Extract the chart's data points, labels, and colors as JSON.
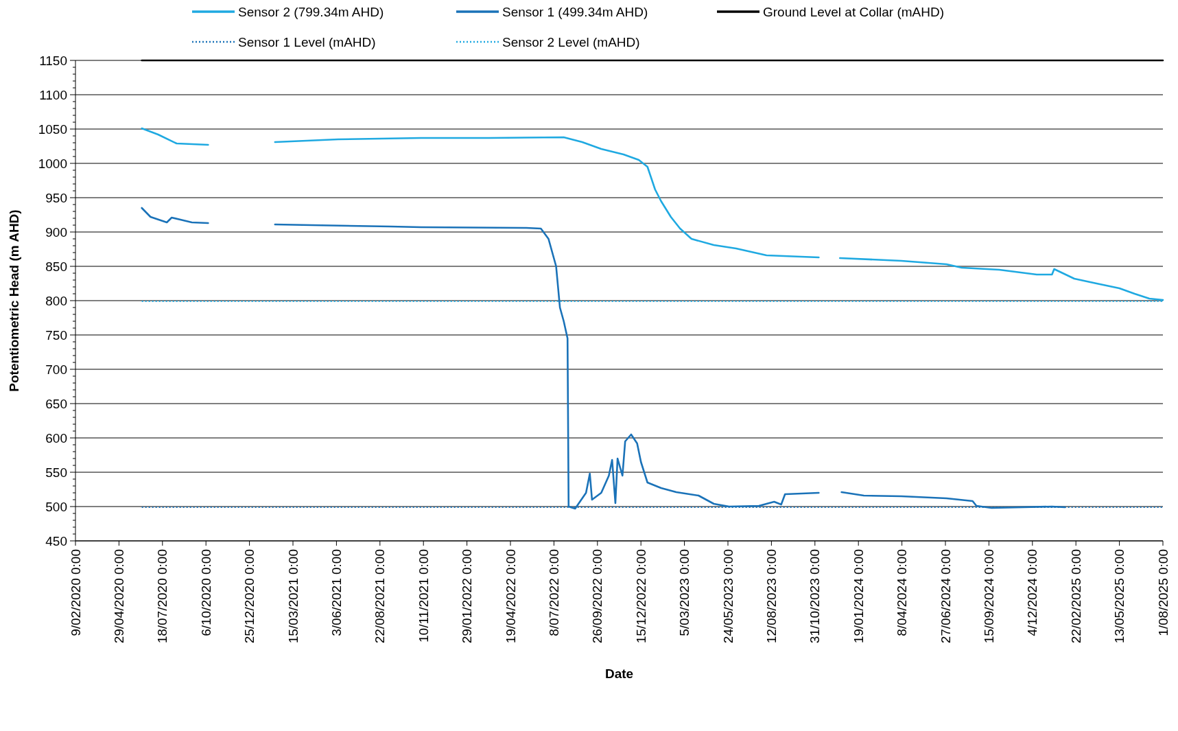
{
  "chart_data": {
    "type": "line",
    "xlabel": "Date",
    "ylabel": "Potentiometric Head (m AHD)",
    "legend": "top",
    "grid": "y",
    "xlim": [
      "2020-02-09",
      "2025-08-01"
    ],
    "ylim": [
      450,
      1150
    ],
    "xticks": [
      {
        "value": "2020-02-09",
        "label": "9/02/2020 0:00"
      },
      {
        "value": "2020-04-29",
        "label": "29/04/2020 0:00"
      },
      {
        "value": "2020-07-18",
        "label": "18/07/2020 0:00"
      },
      {
        "value": "2020-10-06",
        "label": "6/10/2020 0:00"
      },
      {
        "value": "2020-12-25",
        "label": "25/12/2020 0:00"
      },
      {
        "value": "2021-03-15",
        "label": "15/03/2021 0:00"
      },
      {
        "value": "2021-06-03",
        "label": "3/06/2021 0:00"
      },
      {
        "value": "2021-08-22",
        "label": "22/08/2021 0:00"
      },
      {
        "value": "2021-11-10",
        "label": "10/11/2021 0:00"
      },
      {
        "value": "2022-01-29",
        "label": "29/01/2022 0:00"
      },
      {
        "value": "2022-04-19",
        "label": "19/04/2022 0:00"
      },
      {
        "value": "2022-07-08",
        "label": "8/07/2022 0:00"
      },
      {
        "value": "2022-09-26",
        "label": "26/09/2022 0:00"
      },
      {
        "value": "2022-12-15",
        "label": "15/12/2022 0:00"
      },
      {
        "value": "2023-03-05",
        "label": "5/03/2023 0:00"
      },
      {
        "value": "2023-05-24",
        "label": "24/05/2023 0:00"
      },
      {
        "value": "2023-08-12",
        "label": "12/08/2023 0:00"
      },
      {
        "value": "2023-10-31",
        "label": "31/10/2023 0:00"
      },
      {
        "value": "2024-01-19",
        "label": "19/01/2024 0:00"
      },
      {
        "value": "2024-04-08",
        "label": "8/04/2024 0:00"
      },
      {
        "value": "2024-06-27",
        "label": "27/06/2024 0:00"
      },
      {
        "value": "2024-09-15",
        "label": "15/09/2024 0:00"
      },
      {
        "value": "2024-12-04",
        "label": "4/12/2024 0:00"
      },
      {
        "value": "2025-02-22",
        "label": "22/02/2025 0:00"
      },
      {
        "value": "2025-05-13",
        "label": "13/05/2025 0:00"
      },
      {
        "value": "2025-08-01",
        "label": "1/08/2025 0:00"
      }
    ],
    "yticks": [
      450,
      {
        "value": 460,
        "label": null
      },
      {
        "value": 470,
        "label": null
      },
      {
        "value": 480,
        "label": null
      },
      {
        "value": 490,
        "label": null
      },
      500,
      {
        "value": 510,
        "label": null
      },
      {
        "value": 520,
        "label": null
      },
      {
        "value": 530,
        "label": null
      },
      {
        "value": 540,
        "label": null
      },
      550,
      {
        "value": 560,
        "label": null
      },
      {
        "value": 570,
        "label": null
      },
      {
        "value": 580,
        "label": null
      },
      {
        "value": 590,
        "label": null
      },
      600,
      {
        "value": 610,
        "label": null
      },
      {
        "value": 620,
        "label": null
      },
      {
        "value": 630,
        "label": null
      },
      {
        "value": 640,
        "label": null
      },
      650,
      {
        "value": 660,
        "label": null
      },
      {
        "value": 670,
        "label": null
      },
      {
        "value": 680,
        "label": null
      },
      {
        "value": 690,
        "label": null
      },
      700,
      {
        "value": 710,
        "label": null
      },
      {
        "value": 720,
        "label": null
      },
      {
        "value": 730,
        "label": null
      },
      {
        "value": 740,
        "label": null
      },
      750,
      {
        "value": 760,
        "label": null
      },
      {
        "value": 770,
        "label": null
      },
      {
        "value": 780,
        "label": null
      },
      {
        "value": 790,
        "label": null
      },
      800,
      {
        "value": 810,
        "label": null
      },
      {
        "value": 820,
        "label": null
      },
      {
        "value": 830,
        "label": null
      },
      {
        "value": 840,
        "label": null
      },
      850,
      {
        "value": 860,
        "label": null
      },
      {
        "value": 870,
        "label": null
      },
      {
        "value": 880,
        "label": null
      },
      {
        "value": 890,
        "label": null
      },
      900,
      {
        "value": 910,
        "label": null
      },
      {
        "value": 920,
        "label": null
      },
      {
        "value": 930,
        "label": null
      },
      {
        "value": 940,
        "label": null
      },
      950,
      {
        "value": 960,
        "label": null
      },
      {
        "value": 970,
        "label": null
      },
      {
        "value": 980,
        "label": null
      },
      {
        "value": 990,
        "label": null
      },
      1000,
      {
        "value": 1010,
        "label": null
      },
      {
        "value": 1020,
        "label": null
      },
      {
        "value": 1030,
        "label": null
      },
      {
        "value": 1040,
        "label": null
      },
      1050,
      {
        "value": 1060,
        "label": null
      },
      {
        "value": 1070,
        "label": null
      },
      {
        "value": 1080,
        "label": null
      },
      {
        "value": 1090,
        "label": null
      },
      1100,
      {
        "value": 1110,
        "label": null
      },
      {
        "value": 1120,
        "label": null
      },
      {
        "value": 1130,
        "label": null
      },
      {
        "value": 1140,
        "label": null
      },
      1150
    ],
    "series": [
      {
        "name": "Sensor 2 (799.34m AHD)",
        "color": "#1fa9e1",
        "line_style": "solid",
        "x": [
          "2020-06-10",
          "2020-07-10",
          "2020-08-13",
          "2020-10-10",
          "2020-12-01",
          "2021-02-10",
          "2021-06-06",
          "2021-11-05",
          "2022-03-10",
          "2022-07-26",
          "2022-08-29",
          "2022-10-03",
          "2022-11-13",
          "2022-12-11",
          "2022-12-27",
          "2023-01-10",
          "2023-01-21",
          "2023-02-08",
          "2023-02-25",
          "2023-03-18",
          "2023-04-28",
          "2023-06-08",
          "2023-08-03",
          "2023-11-07",
          "2023-12-01",
          "2023-12-16",
          "2024-04-07",
          "2024-06-29",
          "2024-07-27",
          "2024-10-04",
          "2024-12-12",
          "2025-01-09",
          "2025-01-13",
          "2025-02-19",
          "2025-04-01",
          "2025-05-13",
          "2025-06-10",
          "2025-07-07",
          "2025-08-01"
        ],
        "values": [
          1051,
          1042,
          1029,
          1027,
          null,
          1031,
          1035,
          1037,
          1037,
          1038,
          1031,
          1021,
          1013,
          1005,
          995,
          962,
          945,
          922,
          905,
          890,
          881,
          876,
          866,
          863,
          null,
          862,
          858,
          853,
          848,
          845,
          838,
          838,
          846,
          832,
          825,
          818,
          810,
          803,
          801
        ]
      },
      {
        "name": "Sensor 1 (499.34m AHD)",
        "color": "#1a72b8",
        "line_style": "solid",
        "x": [
          "2020-06-10",
          "2020-06-26",
          "2020-07-26",
          "2020-08-04",
          "2020-08-20",
          "2020-09-10",
          "2020-10-10",
          "2020-12-01",
          "2021-02-10",
          "2021-04-19",
          "2021-09-11",
          "2021-11-05",
          "2022-05-18",
          "2022-06-14",
          "2022-06-28",
          "2022-07-12",
          "2022-07-19",
          "2022-07-26",
          "2022-08-02",
          "2022-08-04",
          "2022-08-16",
          "2022-09-05",
          "2022-09-12",
          "2022-09-16",
          "2022-10-03",
          "2022-10-17",
          "2022-10-23",
          "2022-10-29",
          "2022-11-02",
          "2022-11-11",
          "2022-11-16",
          "2022-11-27",
          "2022-12-08",
          "2022-12-15",
          "2022-12-27",
          "2023-01-21",
          "2023-02-18",
          "2023-03-31",
          "2023-04-28",
          "2023-05-26",
          "2023-07-20",
          "2023-08-17",
          "2023-08-30",
          "2023-09-06",
          "2023-11-07",
          "2023-12-01",
          "2023-12-19",
          "2024-01-29",
          "2024-04-07",
          "2024-06-29",
          "2024-08-16",
          "2024-08-23",
          "2024-09-20",
          "2025-01-09",
          "2025-02-02"
        ],
        "values": [
          935,
          922,
          914,
          921,
          918,
          914,
          913,
          null,
          911,
          910,
          908,
          907,
          906,
          905,
          890,
          850,
          790,
          770,
          745,
          500,
          497,
          520,
          548,
          510,
          520,
          545,
          568,
          505,
          570,
          545,
          595,
          605,
          592,
          565,
          535,
          527,
          521,
          516,
          504,
          500,
          501,
          507,
          503,
          518,
          520,
          null,
          521,
          516,
          515,
          512,
          508,
          501,
          498,
          500,
          499
        ]
      },
      {
        "name": "Ground Level at Collar (mAHD)",
        "color": "#000000",
        "line_style": "solid",
        "x": [
          "2020-06-10",
          "2025-08-01"
        ],
        "values": [
          1150,
          1150
        ]
      },
      {
        "name": "Sensor 1 Level (mAHD)",
        "color": "#1a72b8",
        "line_style": "dotted",
        "x": [
          "2020-06-10",
          "2025-08-01"
        ],
        "values": [
          499,
          499
        ]
      },
      {
        "name": "Sensor 2 Level (mAHD)",
        "color": "#1fa9e1",
        "line_style": "dotted",
        "x": [
          "2020-06-10",
          "2025-08-01"
        ],
        "values": [
          799,
          799
        ]
      }
    ]
  }
}
